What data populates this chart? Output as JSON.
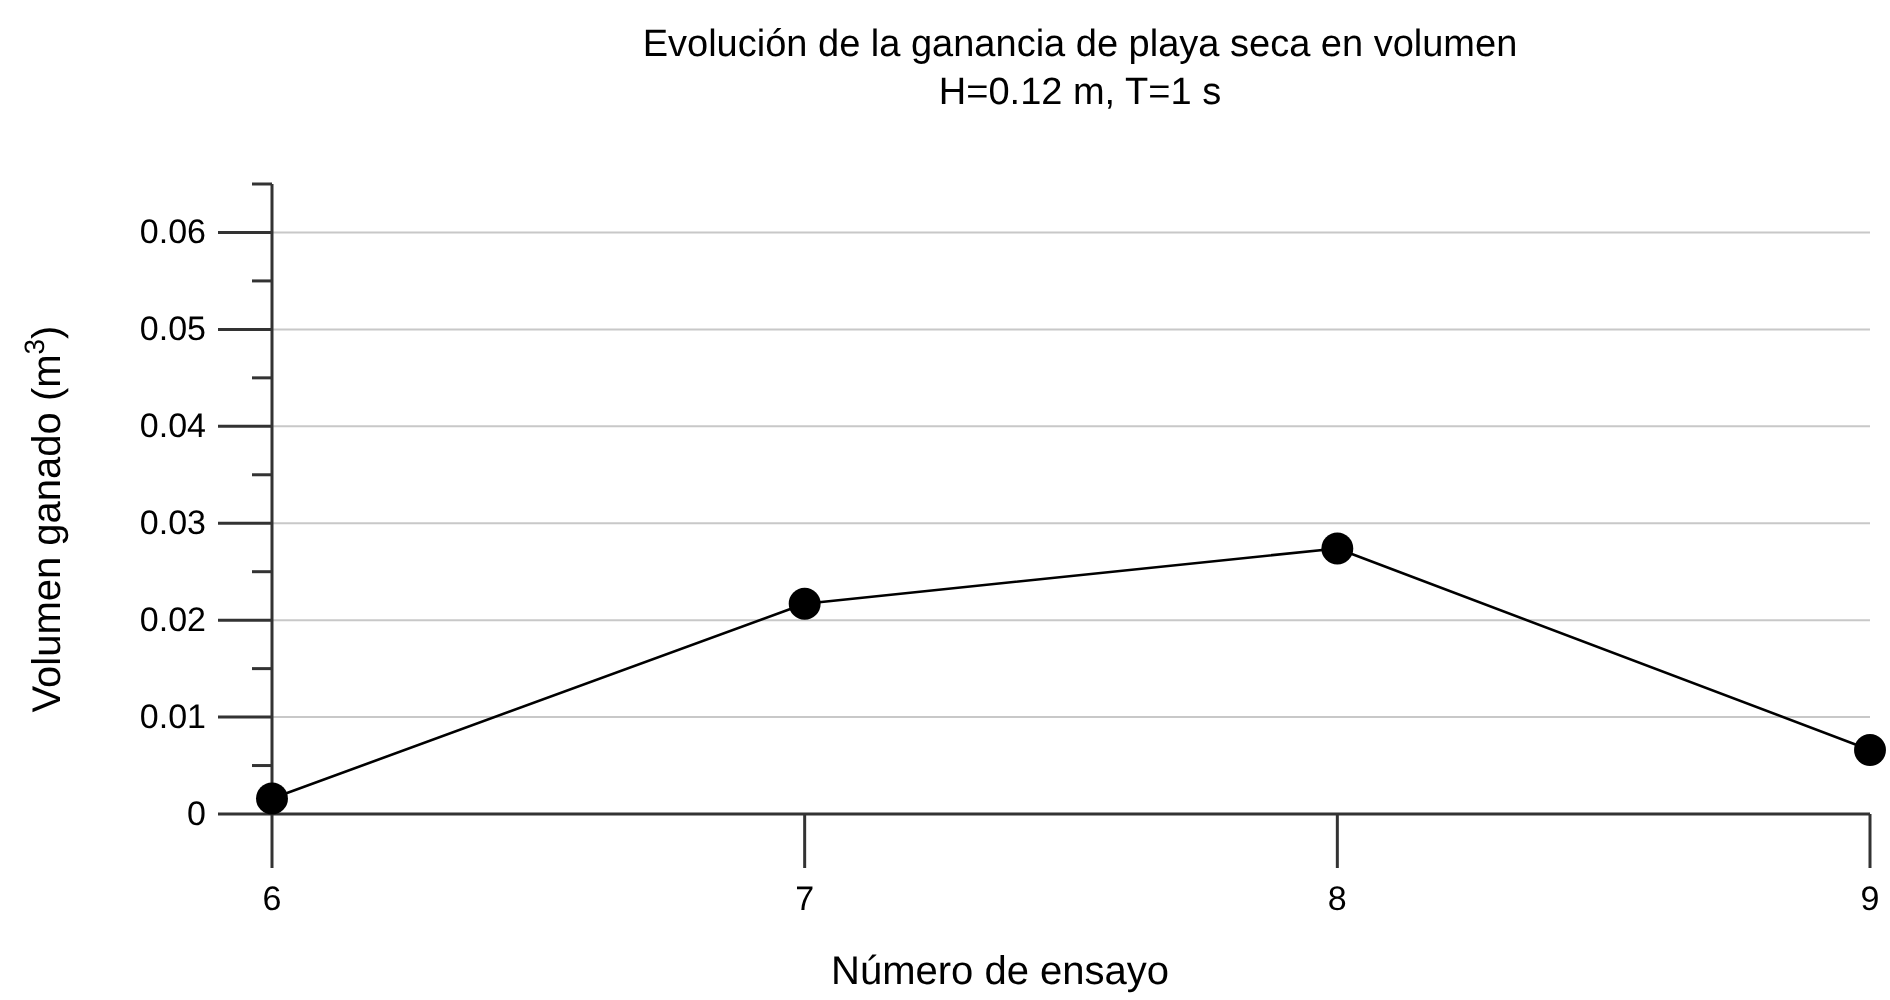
{
  "chart_data": {
    "type": "line",
    "title": "Evolución de la ganancia de playa seca en volumen",
    "subtitle": "H=0.12 m, T=1 s",
    "xlabel": "Número de ensayo",
    "ylabel": "Volumen ganado (m$^{3}$)",
    "x": [
      6,
      7,
      8,
      9
    ],
    "series": [
      {
        "color": "#000000",
        "values": [
          0.0016,
          0.0217,
          0.0274,
          0.0066
        ]
      }
    ],
    "xlim": [
      6,
      9
    ],
    "xticks": [
      6,
      7,
      8,
      9
    ],
    "ylim": [
      0,
      0.065
    ],
    "yticks": [
      0,
      {
        "value": 0.005,
        "label": null
      },
      0.01,
      {
        "value": 0.015,
        "label": null
      },
      0.02,
      {
        "value": 0.025,
        "label": null
      },
      0.03,
      {
        "value": 0.035,
        "label": null
      },
      0.04,
      {
        "value": 0.045,
        "label": null
      },
      0.05,
      {
        "value": 0.055,
        "label": null
      },
      0.06,
      {
        "value": 0.065,
        "label": null
      }
    ],
    "grid": "y",
    "marker": "circle",
    "line_style": "solid"
  }
}
